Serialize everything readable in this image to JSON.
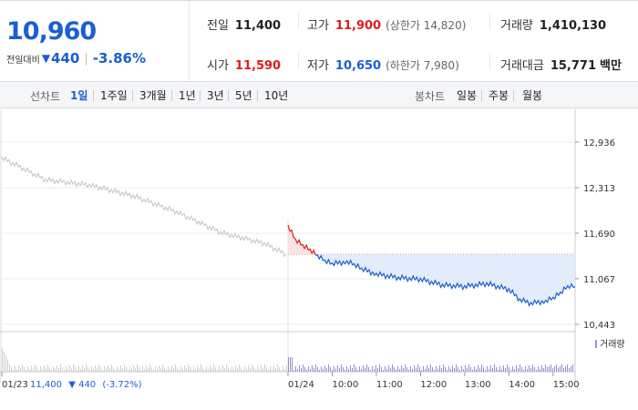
{
  "header": {
    "current_price": "10,960",
    "change_label": "전일대비",
    "change_arrow": "▼",
    "change_value": "440",
    "change_separator": "|",
    "change_pct": "-3.86%"
  },
  "stats": {
    "prev_close": {
      "label": "전일",
      "value": "11,400"
    },
    "high": {
      "label": "고가",
      "value": "11,900",
      "extra": "(상한가 14,820)"
    },
    "volume": {
      "label": "거래량",
      "value": "1,410,130"
    },
    "open": {
      "label": "시가",
      "value": "11,590"
    },
    "low": {
      "label": "저가",
      "value": "10,650",
      "extra": "(하한가 7,980)"
    },
    "trade_amount": {
      "label": "거래대금",
      "value": "15,771",
      "unit": "백만"
    }
  },
  "tabs": {
    "line_chart_title": "선차트",
    "line_periods": [
      "1일",
      "1주일",
      "3개월",
      "1년",
      "3년",
      "5년",
      "10년"
    ],
    "active_period": "1일",
    "candle_chart_title": "봉차트",
    "candle_periods": [
      "일봉",
      "주봉",
      "월봉"
    ]
  },
  "colors": {
    "up": "#e01b1b",
    "down": "#1a5fd1",
    "prev_day_line": "#c4c4c4",
    "area_fill": "#e3ecfb"
  },
  "chart_data": {
    "type": "line",
    "y_ticks": [
      "12,936",
      "12,313",
      "11,690",
      "11,067",
      "10,443"
    ],
    "y_tick_values": [
      12936,
      12313,
      11690,
      11067,
      10443
    ],
    "ylim": [
      10443,
      12936
    ],
    "reference_price": 11400,
    "x_labels": [
      "01/23",
      "01/24",
      "10:00",
      "11:00",
      "12:00",
      "13:00",
      "14:00",
      "15:00"
    ],
    "prev_day_info": {
      "date": "01/23",
      "close": "11,400",
      "arrow": "▼",
      "change": "440",
      "pct": "(-3.72%)"
    },
    "volume_legend": "거래량",
    "series": [
      {
        "x": [
          "01/23 09:00",
          "01/23 10:00",
          "01/23 11:00",
          "01/23 12:00",
          "01/23 13:00",
          "01/23 14:00",
          "01/23 15:00",
          "01/23 15:30"
        ],
        "values": [
          12720,
          12420,
          12350,
          12200,
          11980,
          11700,
          11550,
          11400
        ]
      },
      {
        "x": [
          "09:00",
          "09:10",
          "09:20",
          "09:30",
          "09:40",
          "09:50",
          "10:00",
          "10:20",
          "10:30",
          "10:40",
          "11:00",
          "11:30",
          "12:00",
          "12:30",
          "13:00",
          "13:30",
          "14:00",
          "14:15",
          "14:30",
          "14:50",
          "15:00",
          "15:10",
          "15:20",
          "15:30"
        ],
        "values": [
          11790,
          11600,
          11520,
          11460,
          11380,
          11310,
          11270,
          11300,
          11260,
          11200,
          11130,
          11080,
          11060,
          10980,
          10960,
          11000,
          10920,
          10780,
          10730,
          10760,
          10800,
          10870,
          10960,
          10960
        ]
      }
    ]
  }
}
